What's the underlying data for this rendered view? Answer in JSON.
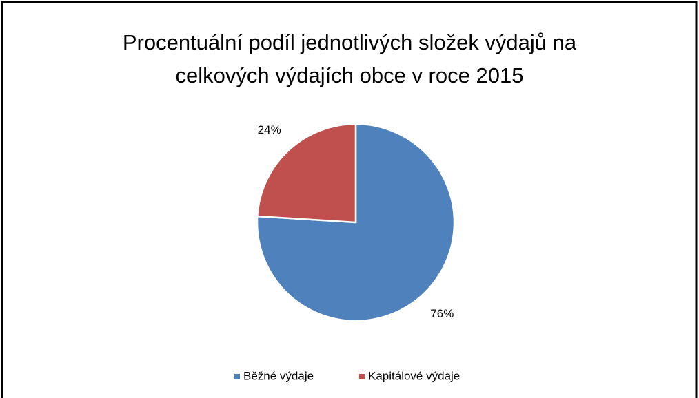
{
  "chart_data": {
    "type": "pie",
    "title": "Procentuální podíl jednotlivých složek výdajů na celkových výdajích obce v roce 2015",
    "categories": [
      "Běžné výdaje",
      "Kapitálové výdaje"
    ],
    "values": [
      76,
      24
    ],
    "value_labels": [
      "76%",
      "24%"
    ],
    "colors": [
      "#4f81bd",
      "#c0504d"
    ],
    "legend": "bottom"
  }
}
